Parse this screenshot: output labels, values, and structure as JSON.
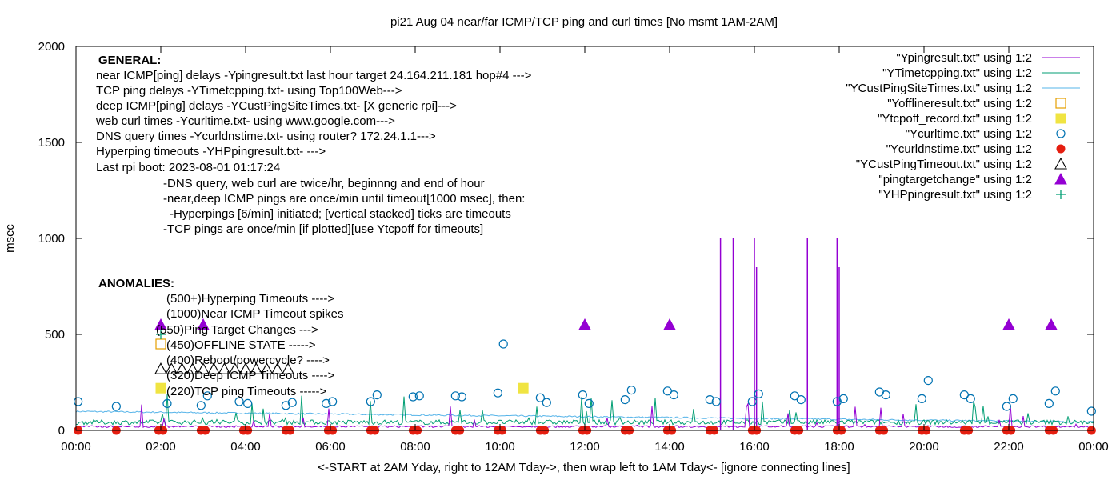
{
  "chart_data": {
    "type": "line",
    "title": "pi21 Aug 04  near/far ICMP/TCP ping and curl times [No msmt 1AM-2AM]",
    "xlabel": "<-START at 2AM Yday, right to 12AM Tday->, then wrap left to 1AM Tday<- [ignore connecting lines]",
    "ylabel": "msec",
    "xlim": [
      0,
      24
    ],
    "ylim": [
      0,
      2000
    ],
    "yticks": [
      "0",
      "500",
      "1000",
      "1500",
      "2000"
    ],
    "xticks": [
      "00:00",
      "02:00",
      "04:00",
      "06:00",
      "08:00",
      "10:00",
      "12:00",
      "14:00",
      "16:00",
      "18:00",
      "20:00",
      "22:00",
      "00:00"
    ],
    "grid": false,
    "legend_position": "top-right",
    "legend": [
      "\"Ypingresult.txt\" using 1:2",
      "\"YTimetcpping.txt\" using 1:2",
      "\"YCustPingSiteTimes.txt\" using 1:2",
      "\"Yofflineresult.txt\" using 1:2",
      "\"Ytcpoff_record.txt\" using 1:2",
      "\"Ycurltime.txt\" using 1:2",
      "\"Ycurldnstime.txt\" using 1:2",
      "\"YCustPingTimeout.txt\" using 1:2",
      "\"pingtargetchange\" using 1:2",
      "\"YHPpingresult.txt\" using 1:2"
    ],
    "annotations": [
      "GENERAL:",
      "near ICMP[ping] delays -Ypingresult.txt last hour target 24.164.211.181 hop#4 --->",
      "TCP ping delays -YTimetcpping.txt- using Top100Web--->",
      "deep ICMP[ping] delays -YCustPingSiteTimes.txt- [X generic rpi]--->",
      "web curl times -Ycurltime.txt- using www.google.com--->",
      "DNS query times -Ycurldnstime.txt- using router? 172.24.1.1--->",
      "Hyperping timeouts -YHPpingresult.txt- --->",
      "Last rpi boot: 2023-08-01 01:17:24",
      "-DNS query, web curl are twice/hr, beginnng and end of hour",
      "-near,deep ICMP pings are once/min until timeout[1000 msec], then:",
      "-Hyperpings [6/min] initiated; [vertical stacked] ticks are timeouts",
      "-TCP pings are once/min [if plotted][use Ytcpoff for timeouts]",
      "ANOMALIES:",
      "(500+)Hyperping Timeouts ---->",
      "(1000)Near ICMP Timeout spikes",
      "(550)Ping Target Changes --->",
      "(450)OFFLINE STATE ----->",
      "(400)Reboot/powercycle? ---->",
      "(320)Deep ICMP Timeouts ---->",
      "(220)TCP ping Timeouts ----->"
    ],
    "colors": {
      "ping": "#9400d3",
      "tcp": "#009e73",
      "cust": "#56b4e9",
      "offline": "#e69f00",
      "tcpoff": "#f0e442",
      "curl": "#0072b2",
      "dns": "#e51e10",
      "timeout": "#000000",
      "target": "#9400d3",
      "hp": "#009e73"
    },
    "series": [
      {
        "key": "curl",
        "marker": "circle",
        "x": [
          0.05,
          0.95,
          2.15,
          2.95,
          3.1,
          3.85,
          4.05,
          4.95,
          5.1,
          5.9,
          6.05,
          6.95,
          7.1,
          7.95,
          8.1,
          8.95,
          9.1,
          9.95,
          10.08,
          10.95,
          11.1,
          11.95,
          12.1,
          12.95,
          13.1,
          13.95,
          14.1,
          14.95,
          15.1,
          15.95,
          16.1,
          16.95,
          17.1,
          17.95,
          18.1,
          18.95,
          19.1,
          19.95,
          20.1,
          20.95,
          21.1,
          21.95,
          22.1,
          22.95,
          23.1,
          23.95
        ],
        "y": [
          150,
          125,
          140,
          130,
          180,
          150,
          140,
          130,
          145,
          140,
          150,
          150,
          185,
          175,
          180,
          180,
          175,
          195,
          450,
          170,
          145,
          185,
          140,
          160,
          210,
          205,
          185,
          160,
          150,
          150,
          190,
          180,
          160,
          150,
          165,
          200,
          185,
          165,
          260,
          185,
          165,
          125,
          165,
          140,
          205,
          100
        ]
      },
      {
        "key": "dns",
        "marker": "dot",
        "x": [
          0.05,
          0.95,
          1.95,
          2.05,
          2.95,
          3.05,
          3.95,
          4.05,
          4.95,
          5.05,
          5.95,
          6.05,
          6.95,
          7.05,
          7.95,
          8.05,
          8.95,
          9.05,
          9.95,
          10.05,
          10.95,
          11.05,
          11.95,
          12.05,
          12.95,
          13.05,
          13.95,
          14.05,
          14.95,
          15.05,
          15.95,
          16.05,
          16.95,
          17.05,
          17.95,
          18.05,
          18.95,
          19.05,
          19.95,
          20.05,
          20.95,
          21.05,
          21.95,
          22.05,
          22.95,
          23.05,
          23.95
        ],
        "y": [
          0,
          0,
          0,
          0,
          0,
          0,
          0,
          0,
          0,
          0,
          0,
          0,
          0,
          0,
          0,
          0,
          0,
          0,
          0,
          0,
          0,
          0,
          0,
          0,
          0,
          0,
          0,
          0,
          0,
          0,
          0,
          0,
          0,
          0,
          0,
          0,
          0,
          0,
          0,
          0,
          0,
          0,
          0,
          0,
          0,
          0,
          0
        ]
      },
      {
        "key": "target",
        "marker": "triangle-filled",
        "x": [
          2.0,
          3.0,
          12.0,
          14.0,
          22.0,
          23.0
        ],
        "y": [
          550,
          550,
          550,
          550,
          550,
          550
        ]
      },
      {
        "key": "tcpoff",
        "marker": "square-filled",
        "x": [
          2.0,
          10.55
        ],
        "y": [
          220,
          220
        ]
      },
      {
        "key": "offline",
        "marker": "square-open",
        "x": [
          2.0
        ],
        "y": [
          450
        ]
      },
      {
        "key": "timeout",
        "marker": "triangle-open",
        "x": [
          2.0,
          2.25,
          2.5,
          2.75,
          3.0,
          3.25,
          3.5,
          3.75,
          4.0,
          4.25,
          4.5,
          4.75,
          5.0
        ],
        "y": [
          320,
          320,
          320,
          320,
          320,
          320,
          320,
          320,
          320,
          320,
          320,
          320,
          320
        ]
      },
      {
        "key": "hp",
        "marker": "plus",
        "x": [
          2.0
        ],
        "y": [
          500
        ]
      }
    ],
    "spikes": {
      "x": [
        15.2,
        15.5,
        16.0,
        16.05,
        17.25,
        17.95,
        18.0
      ],
      "y": [
        1000,
        1000,
        1000,
        850,
        1000,
        1000,
        850
      ]
    },
    "noise": {
      "ping_baseline": 15,
      "tcp_baseline": 30,
      "cust_start": 95,
      "cust_end": 40
    }
  }
}
